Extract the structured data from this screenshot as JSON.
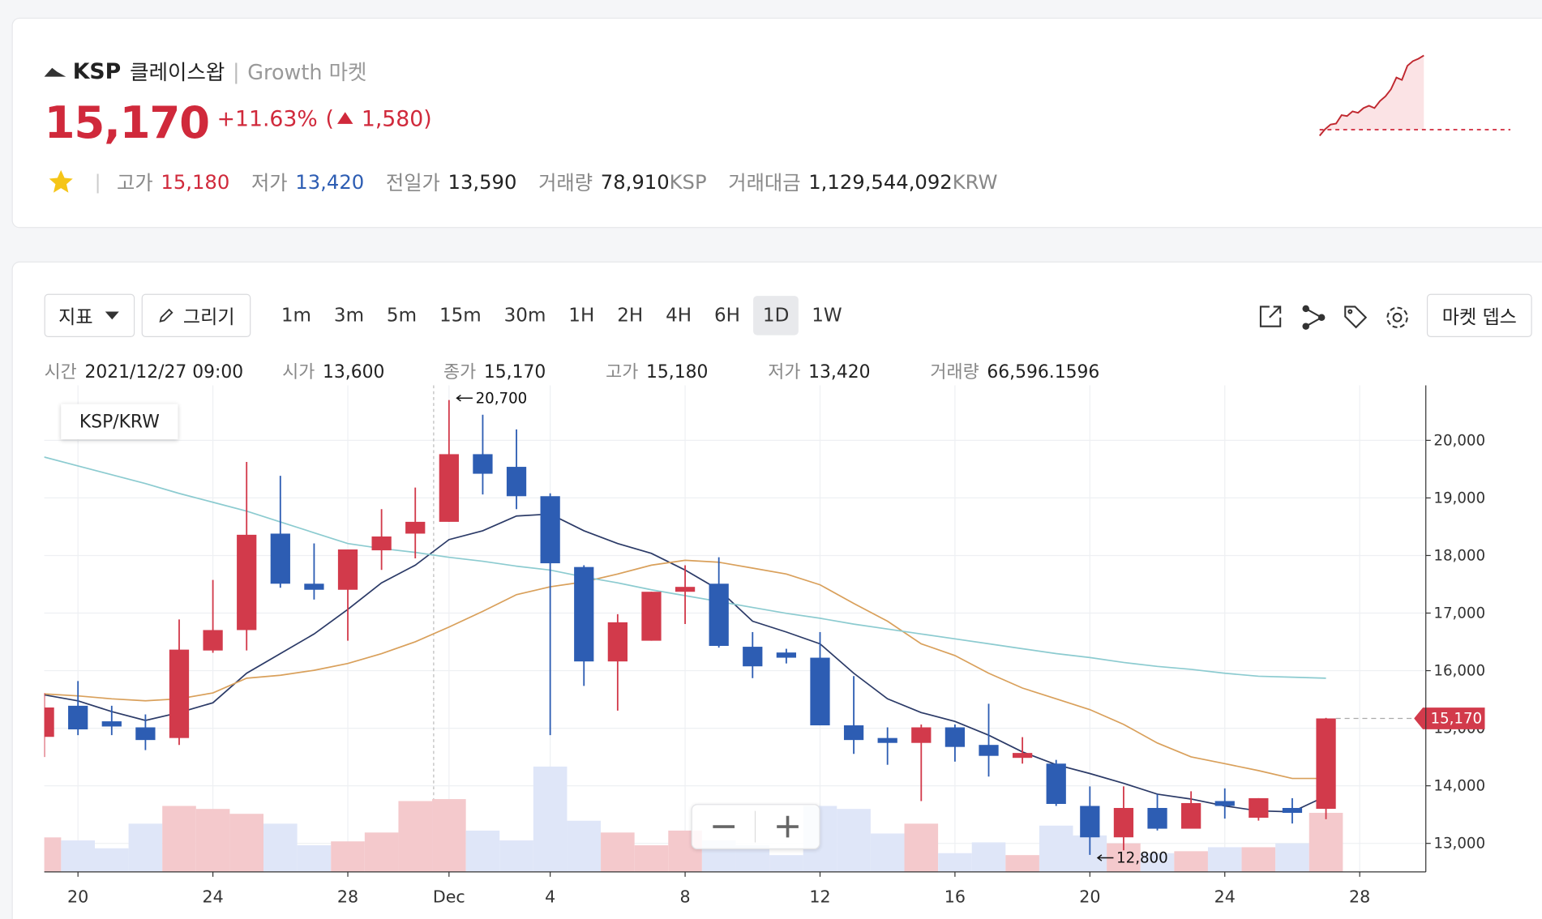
{
  "header": {
    "ticker": "KSP",
    "name": "클레이스왑",
    "market": "Growth 마켓",
    "price": "15,170",
    "change_pct": "+11.63%",
    "change_abs": "1,580",
    "stats": [
      {
        "label": "고가",
        "value": "15,180"
      },
      {
        "label": "저가",
        "value": "13,420"
      },
      {
        "label": "전일가",
        "value": "13,590"
      },
      {
        "label": "거래량",
        "value": "78,910",
        "unit": "KSP"
      },
      {
        "label": "거래대금",
        "value": "1,129,544,092",
        "unit": "KRW"
      }
    ]
  },
  "sparkline": {
    "values": [
      13460,
      13600,
      13700,
      13720,
      13900,
      13880,
      13980,
      13950,
      14050,
      14100,
      14050,
      14200,
      14300,
      14450,
      14700,
      14650,
      14950,
      15050,
      15100,
      15170
    ],
    "ylim": [
      13400,
      15200
    ],
    "baseline": 13590
  },
  "toolbar": {
    "indicator": "지표",
    "draw": "그리기",
    "intervals": [
      "1m",
      "3m",
      "5m",
      "15m",
      "30m",
      "1H",
      "2H",
      "4H",
      "6H",
      "1D",
      "1W"
    ],
    "active_interval": "1D",
    "market_depth": "마켓 뎁스"
  },
  "info": [
    {
      "label": "시간",
      "value": "2021/12/27 09:00"
    },
    {
      "label": "시가",
      "value": "13,600"
    },
    {
      "label": "종가",
      "value": "15,170"
    },
    {
      "label": "고가",
      "value": "15,180"
    },
    {
      "label": "저가",
      "value": "13,420"
    },
    {
      "label": "거래량",
      "value": "66,596.1596"
    }
  ],
  "chart_data": {
    "type": "candlestick",
    "pair": "KSP/KRW",
    "open": [
      14850,
      15390,
      15120,
      15015,
      14830,
      16350,
      16705,
      18380,
      17510,
      17405,
      18090,
      18380,
      18585,
      19760,
      19540,
      19030,
      17800,
      16160,
      16520,
      17370,
      17510,
      16415,
      16315,
      16225,
      15050,
      14830,
      14745,
      15015,
      14710,
      14485,
      14385,
      13650,
      13105,
      13615,
      13255,
      13735,
      13445,
      13615,
      13600
    ],
    "high": [
      15610,
      15820,
      15390,
      15240,
      16890,
      17575,
      19625,
      19385,
      18210,
      18105,
      18805,
      19180,
      20700,
      20445,
      20190,
      19080,
      17830,
      16980,
      17370,
      17830,
      17970,
      16670,
      16380,
      16670,
      15905,
      15015,
      15065,
      15065,
      15425,
      14845,
      14450,
      13990,
      13990,
      13855,
      13905,
      13955,
      13785,
      13785,
      15180
    ],
    "low": [
      14500,
      14880,
      14880,
      14620,
      14710,
      16310,
      16350,
      17440,
      17235,
      16520,
      17750,
      17950,
      18585,
      19060,
      18805,
      14880,
      15735,
      15305,
      16520,
      16810,
      16400,
      15870,
      16125,
      15050,
      14555,
      14365,
      13735,
      14420,
      14160,
      14385,
      13650,
      12800,
      12880,
      13225,
      13255,
      13430,
      13395,
      13345,
      13420
    ],
    "close": [
      15360,
      14980,
      15030,
      14795,
      16365,
      16705,
      18360,
      17510,
      17405,
      18105,
      18330,
      18585,
      19760,
      19420,
      19030,
      17865,
      16160,
      16840,
      17370,
      17455,
      16430,
      16075,
      16225,
      15050,
      14795,
      14745,
      15015,
      14675,
      14520,
      14570,
      13685,
      13105,
      13615,
      13255,
      13700,
      13650,
      13785,
      13530,
      15170
    ],
    "volume": [
      38900,
      35500,
      26600,
      54400,
      74400,
      71000,
      65500,
      54400,
      30000,
      34400,
      44400,
      79900,
      82100,
      46600,
      35500,
      118800,
      57700,
      44400,
      30000,
      46600,
      35500,
      30000,
      18900,
      74400,
      71000,
      43300,
      54400,
      21100,
      33300,
      18900,
      52200,
      41100,
      32200,
      21100,
      23300,
      27800,
      27800,
      32200,
      66596.1596
    ],
    "high_labels": [
      null,
      null,
      null,
      null,
      null,
      null,
      null,
      null,
      null,
      null,
      null,
      null,
      "20,700",
      null,
      null,
      null,
      null,
      null,
      null,
      null,
      null,
      null,
      null,
      null,
      null,
      null,
      null,
      null,
      null,
      null,
      null,
      null,
      null,
      null,
      null,
      null,
      null,
      null,
      null
    ],
    "low_labels": [
      null,
      null,
      null,
      null,
      null,
      null,
      null,
      null,
      null,
      null,
      null,
      null,
      null,
      null,
      null,
      null,
      null,
      null,
      null,
      null,
      null,
      null,
      null,
      null,
      null,
      null,
      null,
      null,
      null,
      null,
      null,
      "12,800",
      null,
      null,
      null,
      null,
      null,
      null,
      null
    ],
    "last_label": "15,170",
    "moving_averages": [
      {
        "color": "#2b3a67",
        "values": [
          15579,
          15476,
          15289,
          15135,
          15272,
          15442,
          15955,
          16296,
          16637,
          17064,
          17525,
          17832,
          18276,
          18430,
          18686,
          18720,
          18430,
          18208,
          18037,
          17747,
          17405,
          16859,
          16671,
          16466,
          15955,
          15511,
          15272,
          15118,
          14879,
          14589,
          14367,
          14213,
          14043,
          13855,
          13770,
          13650,
          13565,
          13548,
          13821
        ]
      },
      {
        "color": "#d9a05b",
        "values": [
          15596,
          15562,
          15511,
          15476,
          15511,
          15613,
          15869,
          15920,
          16006,
          16125,
          16296,
          16501,
          16757,
          17030,
          17320,
          17457,
          17542,
          17679,
          17832,
          17917,
          17883,
          17781,
          17679,
          17491,
          17167,
          16859,
          16466,
          16262,
          15955,
          15698,
          15511,
          15323,
          15067,
          14743,
          14503,
          14384,
          14264,
          14128,
          14128
        ]
      },
      {
        "color": "#8ccbd0",
        "values": [
          19710,
          19556,
          19403,
          19249,
          19078,
          18925,
          18771,
          18583,
          18395,
          18208,
          18122,
          18054,
          17969,
          17900,
          17815,
          17747,
          17627,
          17525,
          17405,
          17303,
          17201,
          17098,
          16996,
          16910,
          16808,
          16723,
          16637,
          16552,
          16467,
          16381,
          16296,
          16228,
          16142,
          16074,
          16023,
          15955,
          15903,
          15886,
          15869
        ]
      }
    ],
    "ylim": [
      12505,
      20956
    ],
    "yticks": [
      {
        "value": 13000,
        "label": "13,000"
      },
      {
        "value": 14000,
        "label": "14,000"
      },
      {
        "value": 15000,
        "label": "15,000"
      },
      {
        "value": 16000,
        "label": "16,000"
      },
      {
        "value": 17000,
        "label": "17,000"
      },
      {
        "value": 18000,
        "label": "18,000"
      },
      {
        "value": 19000,
        "label": "19,000"
      },
      {
        "value": 20000,
        "label": "20,000"
      }
    ],
    "xlim": [
      0,
      40.96
    ],
    "xticks": [
      {
        "value": 1,
        "label": "20"
      },
      {
        "value": 5,
        "label": "24"
      },
      {
        "value": 9,
        "label": "28"
      },
      {
        "value": 12,
        "label": "Dec"
      },
      {
        "value": 15,
        "label": "4"
      },
      {
        "value": 19,
        "label": "8"
      },
      {
        "value": 23,
        "label": "12"
      },
      {
        "value": 27,
        "label": "16"
      },
      {
        "value": 31,
        "label": "20"
      },
      {
        "value": 35,
        "label": "24"
      },
      {
        "value": 39,
        "label": "28"
      }
    ],
    "volume_ylim": [
      0,
      549000
    ],
    "up_color": "#d23a4b",
    "down_color": "#2d5db3",
    "up_volume_color": "#f4c9cc",
    "down_volume_color": "#dfe6f8",
    "grid": true
  }
}
